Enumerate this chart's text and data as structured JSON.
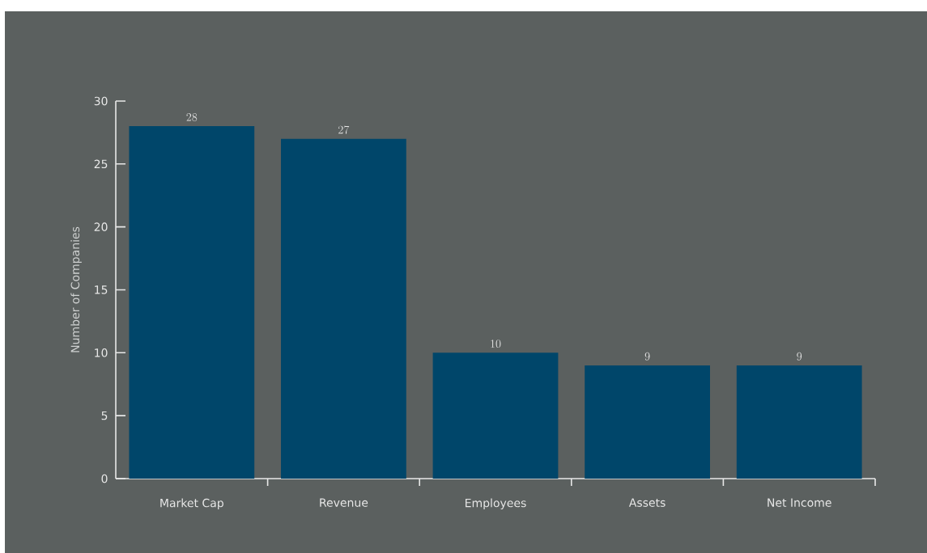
{
  "chart_data": {
    "type": "bar",
    "ylabel": "Number of Companies",
    "categories": [
      "Market Cap",
      "Revenue",
      "Employees",
      "Assets",
      "Net Income"
    ],
    "values": [
      28,
      27,
      10,
      9,
      9
    ],
    "color": "#00466a",
    "ylim": [
      0,
      30
    ],
    "yticks": [
      0,
      5,
      10,
      15,
      20,
      25,
      30
    ],
    "data_labels": true
  }
}
